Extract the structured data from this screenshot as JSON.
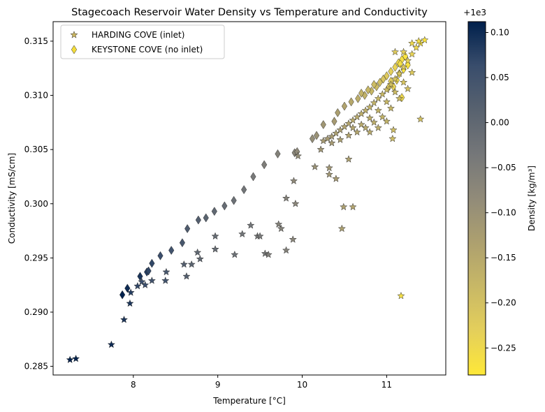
{
  "chart_data": {
    "type": "scatter",
    "title": "Stagecoach Reservoir Water Density vs Temperature and Conductivity",
    "xlabel": "Temperature [°C]",
    "ylabel": "Conductivity [mS/cm]",
    "xlim": [
      7.05,
      11.7
    ],
    "ylim": [
      0.2842,
      0.3168
    ],
    "xticks": [
      8,
      9,
      10,
      11
    ],
    "yticks": [
      0.285,
      0.29,
      0.295,
      0.3,
      0.305,
      0.31,
      0.315
    ],
    "ytick_labels": [
      "0.285",
      "0.290",
      "0.295",
      "0.300",
      "0.305",
      "0.310",
      "0.315"
    ],
    "legend_position": "top-left",
    "colorbar": {
      "label": "Density [kg/m³]",
      "offset_label": "+1e3",
      "colormap": "cividis",
      "range": [
        -0.28,
        0.112
      ],
      "ticks": [
        0.1,
        0.05,
        0.0,
        -0.05,
        -0.1,
        -0.15,
        -0.2,
        -0.25
      ],
      "tick_labels": [
        "0.10",
        "0.05",
        "0.00",
        "−0.05",
        "−0.10",
        "−0.15",
        "−0.20",
        "−0.25"
      ]
    },
    "series": [
      {
        "name": "HARDING COVE (inlet)",
        "marker": "star",
        "points": [
          [
            7.25,
            0.2856,
            0.11
          ],
          [
            7.32,
            0.2857,
            0.11
          ],
          [
            7.74,
            0.287,
            0.1
          ],
          [
            7.89,
            0.2893,
            0.09
          ],
          [
            7.96,
            0.2908,
            0.09
          ],
          [
            7.97,
            0.2918,
            0.08
          ],
          [
            8.05,
            0.2924,
            0.07
          ],
          [
            8.1,
            0.2928,
            0.06
          ],
          [
            8.14,
            0.2925,
            0.06
          ],
          [
            8.22,
            0.2929,
            0.05
          ],
          [
            8.38,
            0.2929,
            0.05
          ],
          [
            8.39,
            0.2937,
            0.04
          ],
          [
            8.6,
            0.2944,
            0.02
          ],
          [
            8.63,
            0.2933,
            0.02
          ],
          [
            8.69,
            0.2944,
            0.01
          ],
          [
            8.76,
            0.2955,
            0.0
          ],
          [
            8.79,
            0.2949,
            0.0
          ],
          [
            8.97,
            0.2958,
            -0.01
          ],
          [
            8.97,
            0.297,
            -0.01
          ],
          [
            9.2,
            0.2953,
            -0.02
          ],
          [
            9.29,
            0.2972,
            -0.03
          ],
          [
            9.39,
            0.298,
            -0.03
          ],
          [
            9.47,
            0.297,
            -0.04
          ],
          [
            9.5,
            0.297,
            -0.04
          ],
          [
            9.56,
            0.2954,
            -0.04
          ],
          [
            9.6,
            0.2953,
            -0.05
          ],
          [
            9.72,
            0.2981,
            -0.06
          ],
          [
            9.75,
            0.2977,
            -0.06
          ],
          [
            9.81,
            0.3005,
            -0.06
          ],
          [
            9.81,
            0.2957,
            -0.06
          ],
          [
            9.89,
            0.2967,
            -0.07
          ],
          [
            9.9,
            0.3021,
            -0.08
          ],
          [
            9.92,
            0.3,
            -0.07
          ],
          [
            9.95,
            0.3044,
            -0.09
          ],
          [
            10.15,
            0.3034,
            -0.1
          ],
          [
            10.22,
            0.305,
            -0.11
          ],
          [
            10.32,
            0.3033,
            -0.11
          ],
          [
            10.32,
            0.3027,
            -0.11
          ],
          [
            10.4,
            0.3023,
            -0.12
          ],
          [
            10.47,
            0.2977,
            -0.13
          ],
          [
            10.49,
            0.2997,
            -0.13
          ],
          [
            10.55,
            0.3041,
            -0.13
          ],
          [
            10.6,
            0.2997,
            -0.14
          ],
          [
            10.25,
            0.3058,
            -0.12
          ],
          [
            10.3,
            0.306,
            -0.12
          ],
          [
            10.35,
            0.3062,
            -0.12
          ],
          [
            10.4,
            0.3065,
            -0.13
          ],
          [
            10.45,
            0.3068,
            -0.13
          ],
          [
            10.5,
            0.3071,
            -0.14
          ],
          [
            10.55,
            0.3074,
            -0.14
          ],
          [
            10.6,
            0.3077,
            -0.15
          ],
          [
            10.65,
            0.308,
            -0.15
          ],
          [
            10.7,
            0.3083,
            -0.16
          ],
          [
            10.75,
            0.3086,
            -0.16
          ],
          [
            10.8,
            0.3089,
            -0.17
          ],
          [
            10.85,
            0.3093,
            -0.17
          ],
          [
            10.9,
            0.3097,
            -0.18
          ],
          [
            10.95,
            0.3101,
            -0.18
          ],
          [
            11.0,
            0.3105,
            -0.19
          ],
          [
            11.05,
            0.311,
            -0.2
          ],
          [
            11.1,
            0.3115,
            -0.21
          ],
          [
            11.15,
            0.312,
            -0.21
          ],
          [
            11.2,
            0.3126,
            -0.22
          ],
          [
            11.25,
            0.3132,
            -0.23
          ],
          [
            11.3,
            0.3138,
            -0.24
          ],
          [
            11.35,
            0.3144,
            -0.25
          ],
          [
            11.4,
            0.3148,
            -0.26
          ],
          [
            11.45,
            0.3151,
            -0.27
          ],
          [
            10.35,
            0.3056,
            -0.12
          ],
          [
            10.45,
            0.3059,
            -0.13
          ],
          [
            10.55,
            0.3063,
            -0.14
          ],
          [
            10.65,
            0.3066,
            -0.14
          ],
          [
            10.75,
            0.307,
            -0.15
          ],
          [
            10.85,
            0.3075,
            -0.16
          ],
          [
            10.95,
            0.308,
            -0.17
          ],
          [
            11.05,
            0.3088,
            -0.18
          ],
          [
            11.15,
            0.3097,
            -0.19
          ],
          [
            11.25,
            0.3106,
            -0.2
          ],
          [
            10.6,
            0.307,
            -0.14
          ],
          [
            10.7,
            0.3073,
            -0.15
          ],
          [
            10.8,
            0.3079,
            -0.16
          ],
          [
            10.9,
            0.3086,
            -0.17
          ],
          [
            11.0,
            0.3094,
            -0.18
          ],
          [
            11.1,
            0.3103,
            -0.19
          ],
          [
            11.2,
            0.3112,
            -0.21
          ],
          [
            11.3,
            0.3121,
            -0.22
          ],
          [
            10.8,
            0.3066,
            -0.15
          ],
          [
            10.9,
            0.307,
            -0.16
          ],
          [
            11.0,
            0.3076,
            -0.17
          ],
          [
            11.2,
            0.314,
            -0.23
          ],
          [
            11.3,
            0.3148,
            -0.25
          ],
          [
            11.38,
            0.315,
            -0.26
          ],
          [
            11.1,
            0.314,
            -0.22
          ],
          [
            11.4,
            0.3078,
            -0.2
          ],
          [
            11.08,
            0.3068,
            -0.19
          ],
          [
            11.07,
            0.306,
            -0.19
          ],
          [
            11.17,
            0.2915,
            -0.26
          ]
        ]
      },
      {
        "name": "KEYSTONE COVE (no inlet)",
        "marker": "thin_diamond",
        "points": [
          [
            7.87,
            0.2916,
            0.11
          ],
          [
            7.93,
            0.2922,
            0.1
          ],
          [
            8.08,
            0.2933,
            0.09
          ],
          [
            8.16,
            0.2937,
            0.08
          ],
          [
            8.18,
            0.2938,
            0.07
          ],
          [
            8.22,
            0.2945,
            0.07
          ],
          [
            8.32,
            0.2952,
            0.06
          ],
          [
            8.45,
            0.2957,
            0.05
          ],
          [
            8.58,
            0.2964,
            0.04
          ],
          [
            8.64,
            0.2977,
            0.03
          ],
          [
            8.77,
            0.2985,
            0.02
          ],
          [
            8.86,
            0.2987,
            0.01
          ],
          [
            8.96,
            0.2993,
            0.0
          ],
          [
            9.08,
            0.2998,
            -0.01
          ],
          [
            9.19,
            0.3003,
            -0.02
          ],
          [
            9.31,
            0.3013,
            -0.03
          ],
          [
            9.42,
            0.3025,
            -0.04
          ],
          [
            9.55,
            0.3036,
            -0.05
          ],
          [
            9.71,
            0.3046,
            -0.06
          ],
          [
            9.91,
            0.3047,
            -0.07
          ],
          [
            9.94,
            0.3048,
            -0.08
          ],
          [
            10.12,
            0.306,
            -0.09
          ],
          [
            10.17,
            0.3063,
            -0.1
          ],
          [
            10.25,
            0.3073,
            -0.11
          ],
          [
            10.38,
            0.3076,
            -0.12
          ],
          [
            10.42,
            0.3084,
            -0.13
          ],
          [
            10.5,
            0.309,
            -0.14
          ],
          [
            10.58,
            0.3094,
            -0.15
          ],
          [
            10.66,
            0.3097,
            -0.16
          ],
          [
            10.74,
            0.31,
            -0.17
          ],
          [
            10.82,
            0.3104,
            -0.18
          ],
          [
            10.88,
            0.3108,
            -0.19
          ],
          [
            10.92,
            0.3112,
            -0.2
          ],
          [
            10.96,
            0.3115,
            -0.21
          ],
          [
            11.0,
            0.3118,
            -0.22
          ],
          [
            11.05,
            0.3122,
            -0.23
          ],
          [
            11.1,
            0.3126,
            -0.24
          ],
          [
            11.14,
            0.313,
            -0.25
          ],
          [
            11.18,
            0.3133,
            -0.26
          ],
          [
            11.22,
            0.3136,
            -0.27
          ],
          [
            11.15,
            0.312,
            -0.26
          ],
          [
            11.12,
            0.3114,
            -0.25
          ],
          [
            11.08,
            0.3108,
            -0.24
          ],
          [
            11.2,
            0.3124,
            -0.27
          ],
          [
            11.05,
            0.3113,
            -0.23
          ],
          [
            11.02,
            0.3107,
            -0.22
          ],
          [
            11.18,
            0.3098,
            -0.25
          ],
          [
            10.85,
            0.311,
            -0.19
          ],
          [
            10.78,
            0.3105,
            -0.18
          ],
          [
            10.7,
            0.3102,
            -0.17
          ],
          [
            11.25,
            0.3128,
            -0.27
          ],
          [
            11.16,
            0.3129,
            -0.26
          ]
        ]
      }
    ]
  }
}
